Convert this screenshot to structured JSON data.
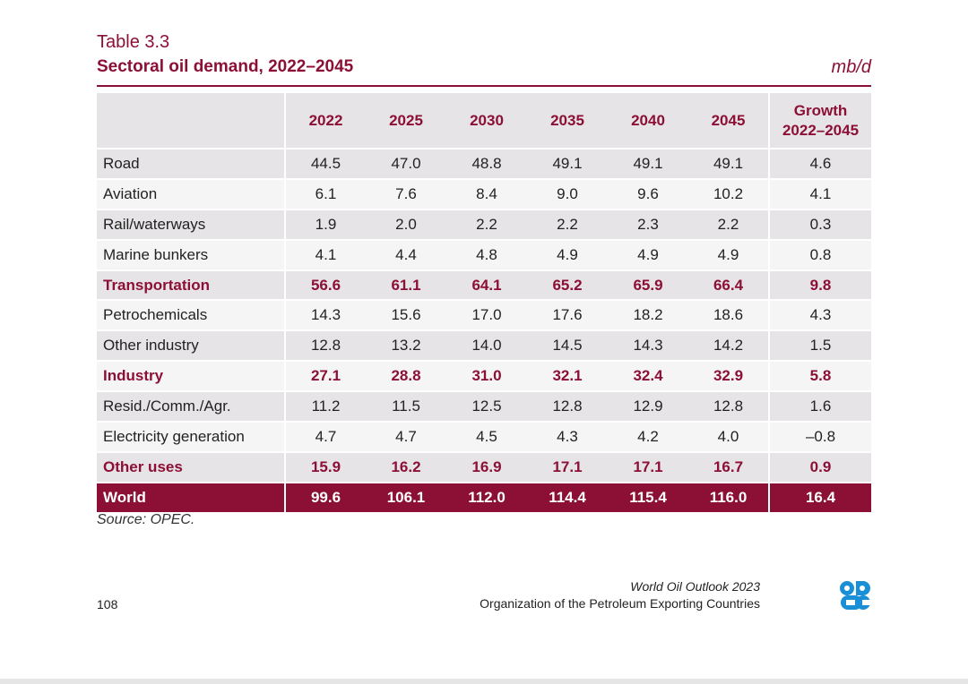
{
  "header": {
    "table_label": "Table 3.3",
    "title": "Sectoral oil demand, 2022–2045",
    "units": "mb/d"
  },
  "table": {
    "columns": [
      "",
      "2022",
      "2025",
      "2030",
      "2035",
      "2040",
      "2045"
    ],
    "growth_header_line1": "Growth",
    "growth_header_line2": "2022–2045",
    "rows": [
      {
        "label": "Road",
        "values": [
          "44.5",
          "47.0",
          "48.8",
          "49.1",
          "49.1",
          "49.1",
          "4.6"
        ]
      },
      {
        "label": "Aviation",
        "values": [
          "6.1",
          "7.6",
          "8.4",
          "9.0",
          "9.6",
          "10.2",
          "4.1"
        ]
      },
      {
        "label": "Rail/waterways",
        "values": [
          "1.9",
          "2.0",
          "2.2",
          "2.2",
          "2.3",
          "2.2",
          "0.3"
        ]
      },
      {
        "label": "Marine bunkers",
        "values": [
          "4.1",
          "4.4",
          "4.8",
          "4.9",
          "4.9",
          "4.9",
          "0.8"
        ]
      },
      {
        "label": "Transportation",
        "values": [
          "56.6",
          "61.1",
          "64.1",
          "65.2",
          "65.9",
          "66.4",
          "9.8"
        ]
      },
      {
        "label": "Petrochemicals",
        "values": [
          "14.3",
          "15.6",
          "17.0",
          "17.6",
          "18.2",
          "18.6",
          "4.3"
        ]
      },
      {
        "label": "Other industry",
        "values": [
          "12.8",
          "13.2",
          "14.0",
          "14.5",
          "14.3",
          "14.2",
          "1.5"
        ]
      },
      {
        "label": "Industry",
        "values": [
          "27.1",
          "28.8",
          "31.0",
          "32.1",
          "32.4",
          "32.9",
          "5.8"
        ]
      },
      {
        "label": "Resid./Comm./Agr.",
        "values": [
          "11.2",
          "11.5",
          "12.5",
          "12.8",
          "12.9",
          "12.8",
          "1.6"
        ]
      },
      {
        "label": "Electricity generation",
        "values": [
          "4.7",
          "4.7",
          "4.5",
          "4.3",
          "4.2",
          "4.0",
          "–0.8"
        ]
      },
      {
        "label": "Other uses",
        "values": [
          "15.9",
          "16.2",
          "16.9",
          "17.1",
          "17.1",
          "16.7",
          "0.9"
        ]
      },
      {
        "label": "World",
        "values": [
          "99.6",
          "106.1",
          "112.0",
          "114.4",
          "115.4",
          "116.0",
          "16.4"
        ]
      }
    ]
  },
  "source": "Source: OPEC.",
  "footer": {
    "page_number": "108",
    "publication": "World Oil Outlook 2023",
    "organization": "Organization of the Petroleum Exporting Countries",
    "logo_icon": "opec-logo-icon"
  },
  "colors": {
    "accent": "#8c1036",
    "row_odd": "#e6e4e6",
    "row_even": "#f5f5f5",
    "logo": "#1a8fd6"
  }
}
